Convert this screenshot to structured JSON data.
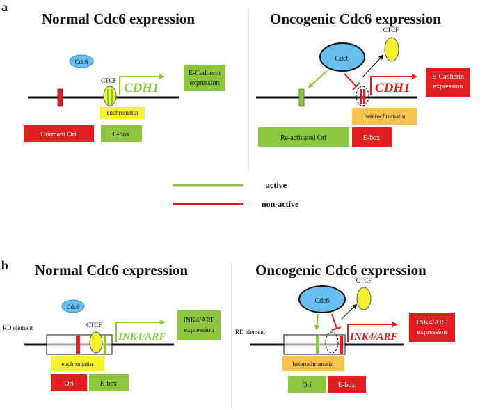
{
  "colors": {
    "green": "#8cc63f",
    "red": "#e02020",
    "yellow": "#f7f22e",
    "orange": "#f9c24a",
    "blue": "#66bff0",
    "dark_text": "#111111"
  },
  "panel_a": {
    "letter": "a",
    "left": {
      "title": "Normal Cdc6 expression",
      "cdc6": "Cdc6",
      "ctcf": "CTCF",
      "gene": "CDH1",
      "expression_line1": "E-Cadherin",
      "expression_line2": "expression",
      "chromatin": "euchromatin",
      "ori_label": "Dormant Ori",
      "ebox_label": "E-box"
    },
    "right": {
      "title": "Oncogenic Cdc6 expression",
      "cdc6": "Cdc6",
      "ctcf": "CTCF",
      "gene": "CDH1",
      "expression_line1": "E-Cadherin",
      "expression_line2": "expression",
      "chromatin": "heterochromatin",
      "ori_label": "Re-activated Ori",
      "ebox_label": "E-box"
    }
  },
  "legend": {
    "active": "active",
    "non_active": "non-active"
  },
  "panel_b": {
    "letter": "b",
    "left": {
      "title": "Normal Cdc6 expression",
      "cdc6": "Cdc6",
      "ctcf": "CTCF",
      "rd_element": "RD element",
      "gene": "INK4/ARF",
      "expression_line1": "INK4/ARF",
      "expression_line2": "expression",
      "chromatin": "euchromatin",
      "ori_label": "Ori",
      "ebox_label": "E-box"
    },
    "right": {
      "title": "Oncogenic Cdc6 expression",
      "cdc6": "Cdc6",
      "ctcf": "CTCF",
      "rd_element": "RD element",
      "gene": "INK4/ARF",
      "expression_line1": "INK4/ARF",
      "expression_line2": "expression",
      "chromatin": "heterochromatin",
      "ori_label": "Ori",
      "ebox_label": "E-box"
    }
  }
}
